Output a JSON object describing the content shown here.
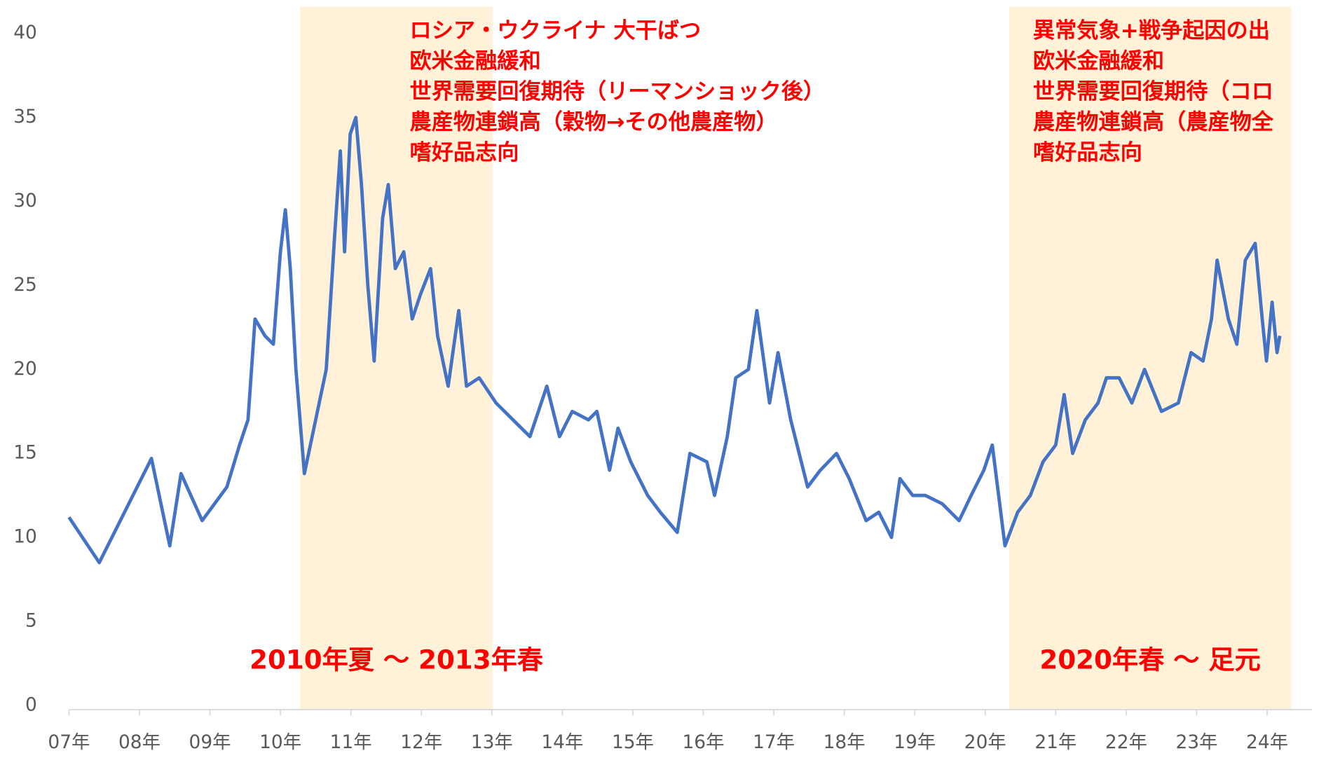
{
  "chart_data": {
    "type": "line",
    "color": "#4472c4",
    "xlim": [
      2007,
      2024.64
    ],
    "xticks": [
      {
        "value": 2007,
        "label": "07年"
      },
      {
        "value": 2008,
        "label": "08年"
      },
      {
        "value": 2009,
        "label": "09年"
      },
      {
        "value": 2010,
        "label": "10年"
      },
      {
        "value": 2011,
        "label": "11年"
      },
      {
        "value": 2012,
        "label": "12年"
      },
      {
        "value": 2013,
        "label": "13年"
      },
      {
        "value": 2014,
        "label": "14年"
      },
      {
        "value": 2015,
        "label": "15年"
      },
      {
        "value": 2016,
        "label": "16年"
      },
      {
        "value": 2017,
        "label": "17年"
      },
      {
        "value": 2018,
        "label": "18年"
      },
      {
        "value": 2019,
        "label": "19年"
      },
      {
        "value": 2020,
        "label": "20年"
      },
      {
        "value": 2021,
        "label": "21年"
      },
      {
        "value": 2022,
        "label": "22年"
      },
      {
        "value": 2023,
        "label": "23年"
      },
      {
        "value": 2024,
        "label": "24年"
      }
    ],
    "ylim": [
      0,
      40
    ],
    "yticks": [
      0,
      5,
      10,
      15,
      20,
      25,
      30,
      35,
      40
    ],
    "x": [
      2007.0,
      2007.43,
      2008.17,
      2008.43,
      2008.59,
      2008.89,
      2009.24,
      2009.42,
      2009.54,
      2009.64,
      2009.78,
      2009.9,
      2010.0,
      2010.07,
      2010.14,
      2010.22,
      2010.34,
      2010.5,
      2010.65,
      2010.77,
      2010.85,
      2010.91,
      2010.99,
      2011.07,
      2011.15,
      2011.24,
      2011.33,
      2011.45,
      2011.53,
      2011.63,
      2011.75,
      2011.87,
      2011.99,
      2012.13,
      2012.23,
      2012.38,
      2012.53,
      2012.64,
      2012.82,
      2013.06,
      2013.3,
      2013.54,
      2013.78,
      2013.96,
      2014.14,
      2014.37,
      2014.49,
      2014.67,
      2014.79,
      2014.97,
      2015.21,
      2015.39,
      2015.63,
      2015.81,
      2016.05,
      2016.16,
      2016.34,
      2016.46,
      2016.64,
      2016.76,
      2016.94,
      2017.06,
      2017.24,
      2017.48,
      2017.66,
      2017.89,
      2018.07,
      2018.31,
      2018.49,
      2018.67,
      2018.79,
      2018.97,
      2019.15,
      2019.39,
      2019.63,
      2019.8,
      2019.98,
      2020.1,
      2020.28,
      2020.46,
      2020.64,
      2020.82,
      2021.0,
      2021.12,
      2021.24,
      2021.42,
      2021.6,
      2021.72,
      2021.9,
      2022.08,
      2022.26,
      2022.5,
      2022.74,
      2022.92,
      2023.09,
      2023.21,
      2023.29,
      2023.45,
      2023.57,
      2023.69,
      2023.83,
      2023.93,
      2023.99,
      2024.07,
      2024.14,
      2024.18
    ],
    "values": [
      11.2,
      8.5,
      14.7,
      9.5,
      13.8,
      11,
      13,
      15.5,
      17,
      23,
      22,
      21.5,
      27,
      29.5,
      26,
      20,
      13.8,
      17,
      20,
      28,
      33,
      27,
      34,
      35,
      31,
      25,
      20.5,
      29,
      31,
      26,
      27,
      23,
      24.5,
      26,
      22,
      19,
      23.5,
      19,
      19.5,
      18,
      17,
      16,
      19,
      16,
      17.5,
      17,
      17.5,
      14,
      16.5,
      14.5,
      12.5,
      11.5,
      10.3,
      15,
      14.5,
      12.5,
      16,
      19.5,
      20,
      23.5,
      18,
      21,
      17,
      13,
      14,
      15,
      13.5,
      11,
      11.5,
      10,
      13.5,
      12.5,
      12.5,
      12,
      11,
      12.5,
      14,
      15.5,
      9.5,
      11.5,
      12.5,
      14.5,
      15.5,
      18.5,
      15,
      17,
      18,
      19.5,
      19.5,
      18,
      20,
      17.5,
      18,
      21,
      20.5,
      23,
      26.5,
      23,
      21.5,
      26.5,
      27.5,
      23,
      20.5,
      24,
      21,
      22
    ],
    "bands": [
      {
        "start": 2010.28,
        "end": 2013.01,
        "label": "2010年夏 ～ 2013年春"
      },
      {
        "start": 2020.34,
        "end": 2024.34,
        "label": "2020年春 ～ 足元"
      }
    ],
    "annotations": [
      [
        "ロシア・ウクライナ 大干ばつ",
        "欧米金融緩和",
        "世界需要回復期待（リーマンショック後）",
        "農産物連鎖高（穀物→その他農産物）",
        "嗜好品志向"
      ],
      [
        "異常気象+戦争起因の出",
        "欧米金融緩和",
        "世界需要回復期待（コロ",
        "農産物連鎖高（農産物全",
        "嗜好品志向"
      ]
    ]
  }
}
